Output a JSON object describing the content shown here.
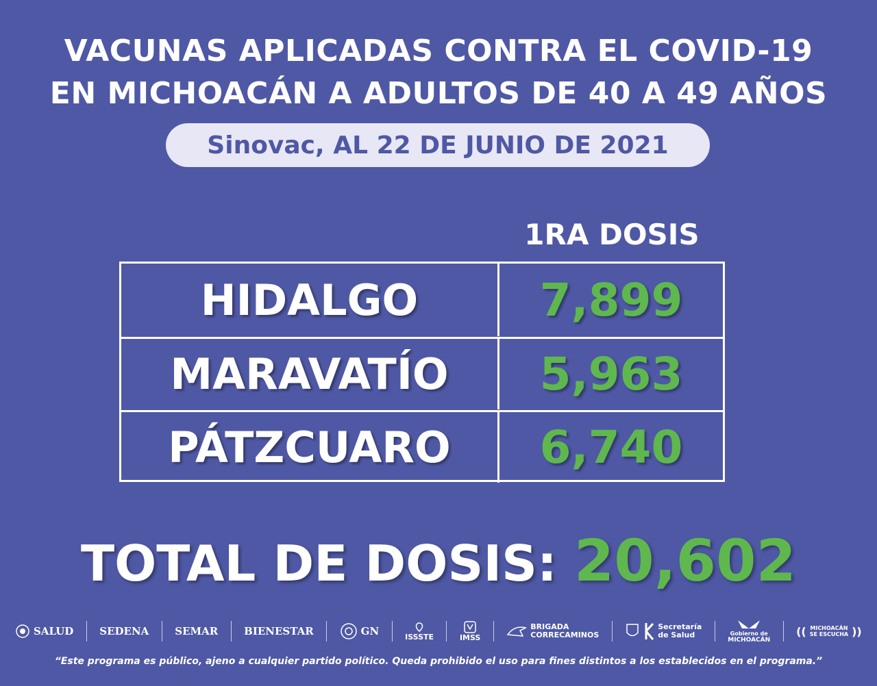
{
  "header": {
    "title_line1": "VACUNAS APLICADAS CONTRA EL COVID-19",
    "title_line2": "EN MICHOACÁN A ADULTOS DE 40 A 49 AÑOS",
    "subtitle": "Sinovac, AL 22 DE JUNIO DE 2021"
  },
  "table": {
    "column_header": "1RA DOSIS",
    "rows": [
      {
        "municipio": "HIDALGO",
        "dosis": "7,899"
      },
      {
        "municipio": "MARAVATÍO",
        "dosis": "5,963"
      },
      {
        "municipio": "PÁTZCUARO",
        "dosis": "6,740"
      }
    ]
  },
  "total": {
    "label": "TOTAL DE DOSIS:",
    "value": "20,602"
  },
  "logos": {
    "salud": "SALUD",
    "sedena": "SEDENA",
    "semar": "SEMAR",
    "bienestar": "BIENESTAR",
    "gn": "GN",
    "issste": "ISSSTE",
    "imss": "IMSS",
    "brigada_1": "BRIGADA",
    "brigada_2": "CORRECAMINOS",
    "secretaria_1": "Secretaría",
    "secretaria_2": "de Salud",
    "gobierno_1": "Gobierno de",
    "gobierno_2": "MICHOACÁN",
    "escucha_1": "MICHOACÁN",
    "escucha_2": "SE ESCUCHA"
  },
  "disclaimer": "“Este programa es público, ajeno a cualquier partido político. Queda prohibido el uso para fines distintos a los establecidos en el programa.”",
  "colors": {
    "background": "#4f58a4",
    "accent_green": "#5fb84e",
    "pill": "#e8e7f5",
    "text": "#ffffff"
  }
}
